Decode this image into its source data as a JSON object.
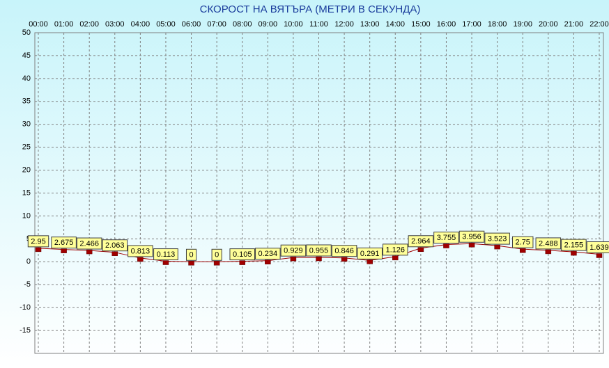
{
  "chart_data": {
    "type": "line",
    "title": "СКОРОСТ НА ВЯТЪРА (МЕТРИ В СЕКУНДА)",
    "categories": [
      "00:00",
      "01:00",
      "02:00",
      "03:00",
      "04:00",
      "05:00",
      "06:00",
      "07:00",
      "08:00",
      "09:00",
      "10:00",
      "11:00",
      "12:00",
      "13:00",
      "14:00",
      "15:00",
      "16:00",
      "17:00",
      "18:00",
      "19:00",
      "20:00",
      "21:00",
      "22:00"
    ],
    "values": [
      2.95,
      2.675,
      2.466,
      2.063,
      0.813,
      0.113,
      0,
      0,
      0.105,
      0.234,
      0.929,
      0.955,
      0.846,
      0.291,
      1.126,
      2.964,
      3.755,
      3.956,
      3.523,
      2.75,
      2.488,
      2.155,
      1.639
    ],
    "color": "#a00000",
    "ylim": [
      -20,
      50
    ],
    "yticks": [
      50,
      45,
      40,
      35,
      30,
      25,
      20,
      15,
      10,
      5,
      0,
      -5,
      -10,
      -15
    ],
    "grid": true
  }
}
